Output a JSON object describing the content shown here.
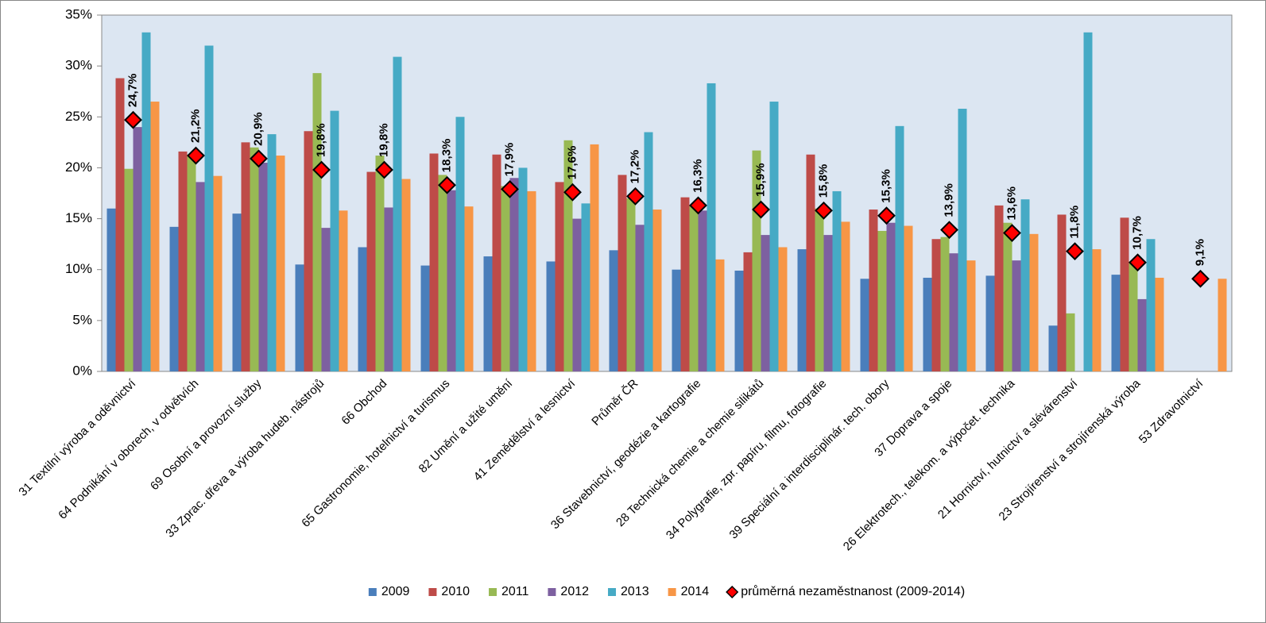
{
  "chart_data": {
    "type": "bar",
    "categories": [
      "31 Textilní výroba a oděvnictví",
      "64 Podnikání v oborech, v odvětvích",
      "69 Osobní a provozní služby",
      "33 Zprac. dřeva a výroba hudeb. nástrojů",
      "66 Obchod",
      "65 Gastronomie, hotelnictví a turismus",
      "82 Umění a užité umění",
      "41 Zemědělství a lesnictví",
      "Průměr ČR",
      "36 Stavebnictví, geodézie a kartografie",
      "28 Technická chemie a chemie silikátů",
      "34 Polygrafie, zpr. papíru, filmu, fotografie",
      "39 Speciální a interdisciplinár. tech. obory",
      "37 Doprava a spoje",
      "26 Elektrotech., telekom. a výpočet. technika",
      "21 Hornictví, hutnictví a slévárenství",
      "23 Strojírenství a strojírenská výroba",
      "53 Zdravotnictví"
    ],
    "series": [
      {
        "name": "2009",
        "type": "bar",
        "color": "#4a7ebb",
        "values": [
          16.0,
          14.2,
          15.5,
          10.5,
          12.2,
          10.4,
          11.3,
          10.8,
          11.9,
          10.0,
          9.9,
          12.0,
          9.1,
          9.2,
          9.4,
          4.5,
          9.5,
          null
        ]
      },
      {
        "name": "2010",
        "type": "bar",
        "color": "#be4b48",
        "values": [
          28.8,
          21.6,
          22.5,
          23.6,
          19.6,
          21.4,
          21.3,
          18.6,
          19.3,
          17.1,
          11.7,
          21.3,
          15.9,
          13.0,
          16.3,
          15.4,
          15.1,
          null
        ]
      },
      {
        "name": "2011",
        "type": "bar",
        "color": "#98b954",
        "values": [
          19.9,
          21.3,
          22.0,
          29.3,
          21.2,
          19.3,
          18.2,
          22.7,
          17.0,
          16.3,
          21.7,
          16.0,
          13.8,
          13.2,
          14.6,
          5.7,
          10.8,
          null
        ]
      },
      {
        "name": "2012",
        "type": "bar",
        "color": "#7d60a0",
        "values": [
          24.0,
          18.6,
          20.5,
          14.1,
          16.1,
          17.8,
          19.0,
          15.0,
          14.4,
          15.8,
          13.4,
          13.4,
          14.6,
          11.6,
          10.9,
          null,
          7.1,
          null
        ]
      },
      {
        "name": "2013",
        "type": "bar",
        "color": "#46aac5",
        "values": [
          33.3,
          32.0,
          23.3,
          25.6,
          30.9,
          25.0,
          20.0,
          16.5,
          23.5,
          28.3,
          26.5,
          17.7,
          24.1,
          25.8,
          16.9,
          33.3,
          13.0,
          null
        ]
      },
      {
        "name": "2014",
        "type": "bar",
        "color": "#f79646",
        "values": [
          26.5,
          19.2,
          21.2,
          15.8,
          18.9,
          16.2,
          17.7,
          22.3,
          15.9,
          11.0,
          12.2,
          14.7,
          14.3,
          10.9,
          13.5,
          12.0,
          9.2,
          9.1
        ]
      },
      {
        "name": "průměrná nezaměstnanost (2009-2014)",
        "type": "scatter",
        "color": "#ff0000",
        "values": [
          24.7,
          21.2,
          20.9,
          19.8,
          19.8,
          18.3,
          17.9,
          17.6,
          17.2,
          16.3,
          15.9,
          15.8,
          15.3,
          13.9,
          13.6,
          11.8,
          10.7,
          9.1
        ],
        "value_labels": [
          "24,7%",
          "21,2%",
          "20,9%",
          "19,8%",
          "19,8%",
          "18,3%",
          "17,9%",
          "17,6%",
          "17,2%",
          "16,3%",
          "15,9%",
          "15,8%",
          "15,3%",
          "13,9%",
          "13,6%",
          "11,8%",
          "10,7%",
          "9,1%"
        ]
      }
    ],
    "ylim": [
      0,
      35
    ],
    "yticks": [
      {
        "value": 0,
        "label": "0%"
      },
      {
        "value": 5,
        "label": "5%"
      },
      {
        "value": 10,
        "label": "10%"
      },
      {
        "value": 15,
        "label": "15%"
      },
      {
        "value": 20,
        "label": "20%"
      },
      {
        "value": 25,
        "label": "25%"
      },
      {
        "value": 30,
        "label": "30%"
      },
      {
        "value": 35,
        "label": "35%"
      }
    ],
    "grid": false,
    "legend": "bottom"
  }
}
